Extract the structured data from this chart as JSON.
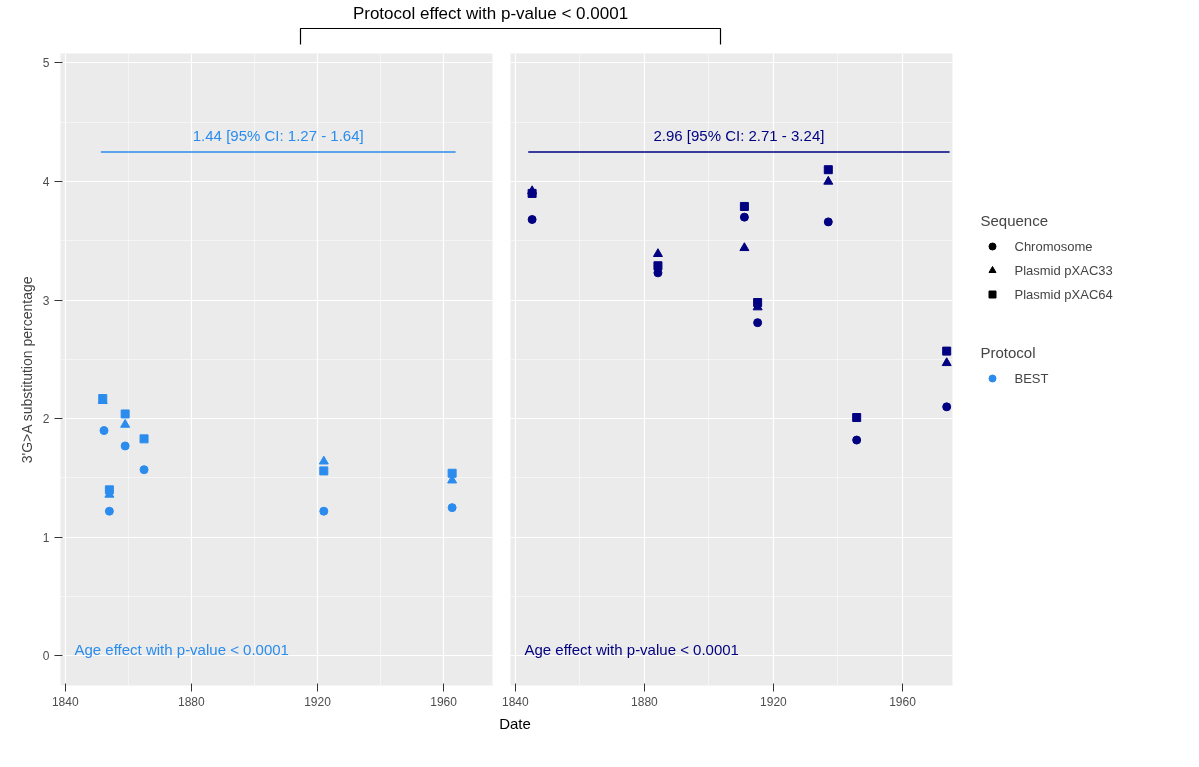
{
  "chart_data": [
    {
      "type": "scatter",
      "title": "Protocol effect with p-value < 0.0001",
      "xlabel": "Date",
      "ylabel": "3'G>A substitution percentage",
      "grid": true,
      "xlim": [
        1838.5,
        1975.5
      ],
      "xticks": [
        1840,
        1880,
        1920,
        1960
      ],
      "ylim": [
        -0.25,
        5.08
      ],
      "yticks": [
        0,
        1,
        2,
        3,
        4,
        5
      ],
      "annotations": [
        "Age effect with p-value < 0.0001"
      ],
      "series": [
        {
          "color": "#2b8ced",
          "marker": "circle",
          "x": [
            1852.3,
            1854,
            1859,
            1865,
            1922,
            1962.7
          ],
          "values": [
            1.9,
            1.22,
            1.77,
            1.57,
            1.22,
            1.25
          ]
        },
        {
          "color": "#2b8ced",
          "marker": "triangle",
          "x": [
            1851.9,
            1854,
            1859,
            1865,
            1922,
            1962.7
          ],
          "values": [
            2.15,
            1.36,
            1.95,
            null,
            1.64,
            1.48
          ]
        },
        {
          "color": "#2b8ced",
          "marker": "square",
          "x": [
            1851.9,
            1854,
            1859,
            1865,
            1922,
            1962.7
          ],
          "values": [
            2.17,
            1.4,
            2.04,
            1.83,
            1.56,
            1.54
          ]
        },
        {
          "name": "1.44 [95% CI: 1.27 - 1.64]",
          "type": "line",
          "color": "#2b8ced",
          "x": [
            1851.3,
            1963.8
          ],
          "values": [
            4.25,
            4.25
          ]
        }
      ]
    },
    {
      "type": "scatter",
      "grid": true,
      "tick_labels": "x",
      "xlim": [
        1838.5,
        1975.5
      ],
      "xticks": [
        1840,
        1880,
        1920,
        1960
      ],
      "ylim": [
        -0.25,
        5.08
      ],
      "yticks": [
        0,
        1,
        2,
        3,
        4,
        5
      ],
      "annotations": [
        "Age effect with p-value < 0.0001"
      ],
      "series": [
        {
          "color": "#000080",
          "marker": "circle",
          "x": [
            1845.2,
            1884.2,
            1911,
            1915.1,
            1937,
            1945.8,
            1973.7
          ],
          "values": [
            3.68,
            3.23,
            3.7,
            2.81,
            3.66,
            1.82,
            2.1
          ]
        },
        {
          "color": "#000080",
          "marker": "triangle",
          "x": [
            1845.2,
            1884.2,
            1911,
            1915.1,
            1937,
            1945.8,
            1973.7
          ],
          "values": [
            3.92,
            3.39,
            3.44,
            2.94,
            4.0,
            null,
            2.47
          ]
        },
        {
          "color": "#000080",
          "marker": "square",
          "x": [
            1845.2,
            1884.2,
            1911,
            1915.1,
            1937,
            1945.8,
            1973.7
          ],
          "values": [
            3.9,
            3.29,
            3.79,
            2.98,
            4.1,
            2.01,
            2.57
          ]
        },
        {
          "name": "2.96 [95% CI: 2.71 - 3.24]",
          "type": "line",
          "color": "#000080",
          "x": [
            1844,
            1974.6
          ],
          "values": [
            4.25,
            4.25
          ]
        }
      ]
    },
    {
      "type": "other",
      "legend_title": "Sequence",
      "categories": [
        "Chromosome",
        "Plasmid pXAC33",
        "Plasmid pXAC64"
      ],
      "colors": [
        "#000000",
        "#000000",
        "#000000"
      ]
    },
    {
      "type": "other",
      "legend_title": "Protocol",
      "categories": [
        "BEST"
      ],
      "colors": [
        "#2b8ced"
      ]
    }
  ]
}
